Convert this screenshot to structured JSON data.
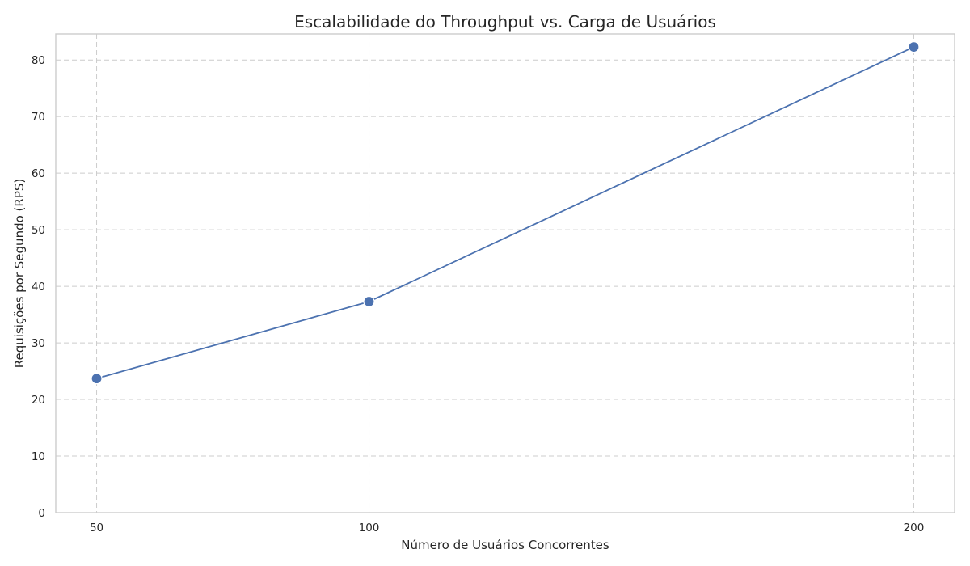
{
  "chart_data": {
    "type": "line",
    "title": "Escalabilidade do Throughput vs. Carga de Usuários",
    "xlabel": "Número de Usuários Concorrentes",
    "ylabel": "Requisições por Segundo (RPS)",
    "x": [
      50,
      100,
      200
    ],
    "x_tick_labels": [
      "50",
      "100",
      "200"
    ],
    "y_ticks": [
      0,
      10,
      20,
      30,
      40,
      50,
      60,
      70,
      80
    ],
    "y_tick_labels": [
      "0",
      "10",
      "20",
      "30",
      "40",
      "50",
      "60",
      "70",
      "80"
    ],
    "xlim": [
      42.5,
      207.5
    ],
    "ylim": [
      0,
      84.6
    ],
    "grid": true,
    "series": [
      {
        "values": [
          23.7,
          37.3,
          82.3
        ],
        "color": "#4c72b0"
      }
    ]
  }
}
